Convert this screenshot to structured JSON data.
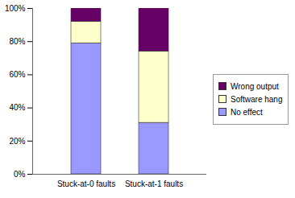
{
  "chart_data": {
    "type": "bar",
    "stacked": true,
    "categories": [
      "Stuck-at-0 faults",
      "Stuck-at-1 faults"
    ],
    "series": [
      {
        "name": "No effect",
        "color": "#9999ff",
        "values": [
          79,
          31
        ]
      },
      {
        "name": "Software hang",
        "color": "#ffffcc",
        "values": [
          13,
          43
        ]
      },
      {
        "name": "Wrong output",
        "color": "#660066",
        "values": [
          8,
          26
        ]
      }
    ],
    "ylim": [
      0,
      100
    ],
    "yticks": [
      {
        "value": 0,
        "label": "0%"
      },
      {
        "value": 20,
        "label": "20%"
      },
      {
        "value": 40,
        "label": "40%"
      },
      {
        "value": 60,
        "label": "60%"
      },
      {
        "value": 80,
        "label": "80%"
      },
      {
        "value": 100,
        "label": "100%"
      }
    ],
    "legend": "right",
    "grid": false
  }
}
